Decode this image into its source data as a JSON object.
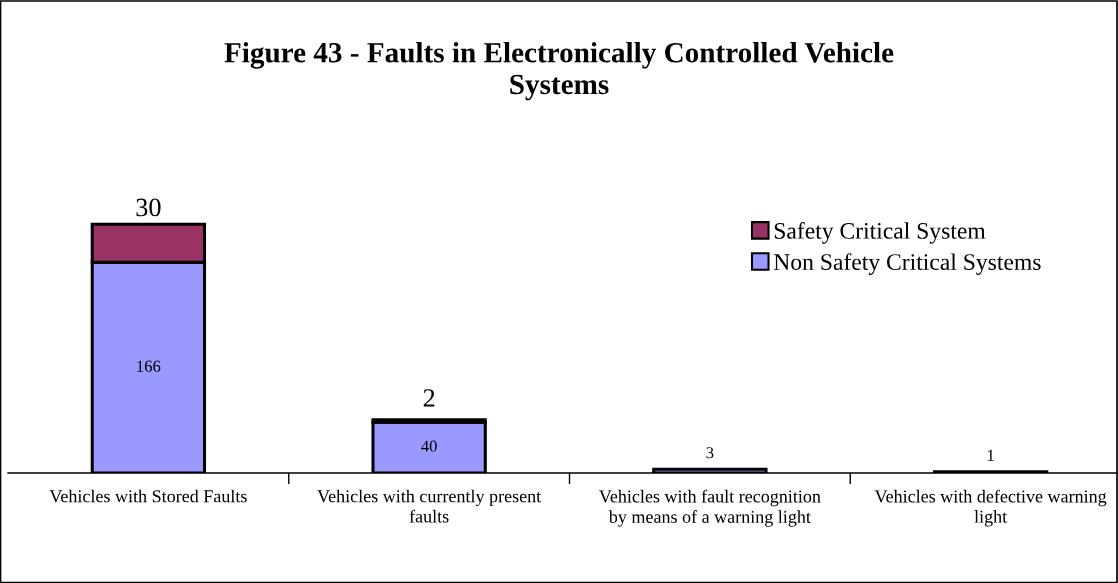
{
  "chart_data": {
    "type": "bar",
    "title": "Figure 43 - Faults in Electronically Controlled Vehicle Systems",
    "categories": [
      "Vehicles with Stored Faults",
      "Vehicles with currently present faults",
      "Vehicles with fault recognition by means of a warning light",
      "Vehicles with defective warning light"
    ],
    "stacked": true,
    "series": [
      {
        "name": "Non Safety Critical Systems",
        "color": "#9999ff",
        "values": [
          166,
          40,
          3,
          1
        ]
      },
      {
        "name": "Safety Critical System",
        "color": "#993366",
        "values": [
          30,
          2,
          null,
          null
        ]
      }
    ],
    "data_labels": true,
    "legend": "top right",
    "grid": false
  }
}
